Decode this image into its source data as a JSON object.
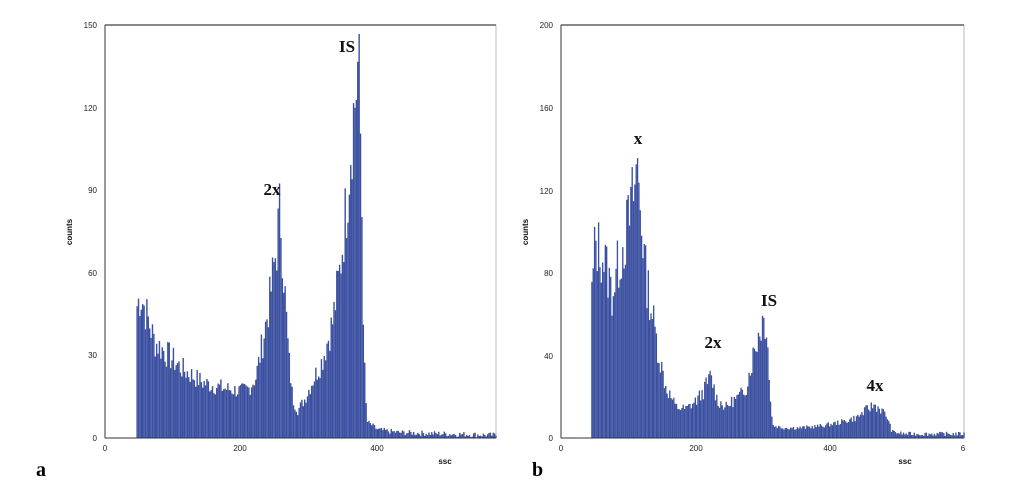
{
  "chart_data": [
    {
      "type": "bar",
      "panel_label": "a",
      "xlabel": "ssc",
      "ylabel": "counts",
      "xlim": [
        0,
        560
      ],
      "ylim": [
        0,
        150
      ],
      "x_ticks": [
        "0",
        "200",
        "400"
      ],
      "y_ticks": [
        "0",
        "30",
        "60",
        "90",
        "120",
        "150"
      ],
      "color": "#3a4fa0",
      "bins": {
        "start": 45,
        "end": 560,
        "step": 2,
        "points": [
          [
            45,
            48
          ],
          [
            50,
            52
          ],
          [
            55,
            48
          ],
          [
            70,
            35
          ],
          [
            90,
            30
          ],
          [
            110,
            25
          ],
          [
            140,
            20
          ],
          [
            170,
            18
          ],
          [
            195,
            17
          ],
          [
            205,
            18
          ],
          [
            215,
            22
          ],
          [
            225,
            35
          ],
          [
            235,
            50
          ],
          [
            245,
            70
          ],
          [
            250,
            84
          ],
          [
            255,
            60
          ],
          [
            262,
            30
          ],
          [
            268,
            14
          ],
          [
            275,
            10
          ],
          [
            285,
            14
          ],
          [
            295,
            20
          ],
          [
            310,
            28
          ],
          [
            325,
            42
          ],
          [
            335,
            60
          ],
          [
            345,
            85
          ],
          [
            352,
            110
          ],
          [
            358,
            125
          ],
          [
            362,
            138
          ],
          [
            366,
            100
          ],
          [
            370,
            30
          ],
          [
            374,
            6
          ],
          [
            390,
            3
          ],
          [
            420,
            2
          ],
          [
            560,
            1
          ]
        ]
      },
      "annotations": [
        {
          "text": "2x",
          "x": 248,
          "y": 88
        },
        {
          "text": "IS",
          "x": 355,
          "y": 142
        }
      ]
    },
    {
      "type": "bar",
      "panel_label": "b",
      "xlabel": "ssc",
      "ylabel": "counts",
      "xlim": [
        0,
        600
      ],
      "ylim": [
        0,
        200
      ],
      "x_ticks": [
        "0",
        "200",
        "400",
        "6"
      ],
      "y_ticks": [
        "0",
        "40",
        "80",
        "120",
        "160",
        "200"
      ],
      "color": "#3a4fa0",
      "bins": {
        "start": 45,
        "end": 600,
        "step": 2,
        "points": [
          [
            45,
            70
          ],
          [
            50,
            95
          ],
          [
            55,
            92
          ],
          [
            65,
            85
          ],
          [
            75,
            70
          ],
          [
            85,
            85
          ],
          [
            95,
            98
          ],
          [
            100,
            105
          ],
          [
            108,
            120
          ],
          [
            113,
            132
          ],
          [
            118,
            110
          ],
          [
            125,
            80
          ],
          [
            135,
            60
          ],
          [
            145,
            40
          ],
          [
            155,
            25
          ],
          [
            170,
            15
          ],
          [
            185,
            14
          ],
          [
            200,
            18
          ],
          [
            210,
            22
          ],
          [
            222,
            30
          ],
          [
            232,
            18
          ],
          [
            245,
            15
          ],
          [
            255,
            18
          ],
          [
            265,
            20
          ],
          [
            275,
            25
          ],
          [
            285,
            40
          ],
          [
            293,
            50
          ],
          [
            300,
            58
          ],
          [
            306,
            55
          ],
          [
            310,
            20
          ],
          [
            315,
            6
          ],
          [
            330,
            5
          ],
          [
            360,
            5
          ],
          [
            390,
            6
          ],
          [
            420,
            8
          ],
          [
            440,
            10
          ],
          [
            455,
            14
          ],
          [
            465,
            16
          ],
          [
            475,
            14
          ],
          [
            485,
            10
          ],
          [
            492,
            3
          ],
          [
            510,
            2
          ],
          [
            600,
            2
          ]
        ]
      },
      "annotations": [
        {
          "text": "x",
          "x": 114,
          "y": 140
        },
        {
          "text": "2x",
          "x": 222,
          "y": 43
        },
        {
          "text": "IS",
          "x": 303,
          "y": 64
        },
        {
          "text": "4x",
          "x": 467,
          "y": 20
        }
      ]
    }
  ]
}
